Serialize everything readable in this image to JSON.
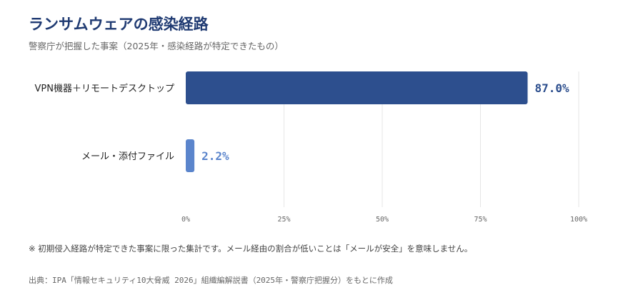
{
  "header": {
    "title": "ランサムウェアの感染経路",
    "subtitle": "警察庁が把握した事案（2025年・感染経路が特定できたもの）"
  },
  "chart_data": {
    "type": "bar",
    "orientation": "horizontal",
    "categories": [
      "VPN機器＋リモートデスクトップ",
      "メール・添付ファイル"
    ],
    "values": [
      87.0,
      2.2
    ],
    "value_labels": [
      "87.0%",
      "2.2%"
    ],
    "xlim": [
      0,
      100
    ],
    "x_ticks": [
      0,
      25,
      50,
      75,
      100
    ],
    "x_tick_labels": [
      "0%",
      "25%",
      "50%",
      "75%",
      "100%"
    ],
    "grid": true,
    "colors": [
      "#2d4f8e",
      "#5b85cc"
    ]
  },
  "footer": {
    "note": "※ 初期侵入経路が特定できた事案に限った集計です。メール経由の割合が低いことは「メールが安全」を意味しません。",
    "source": "出典：IPA「情報セキュリティ10大脅威 2026」組織編解説書（2025年・警察庁把握分）をもとに作成"
  }
}
